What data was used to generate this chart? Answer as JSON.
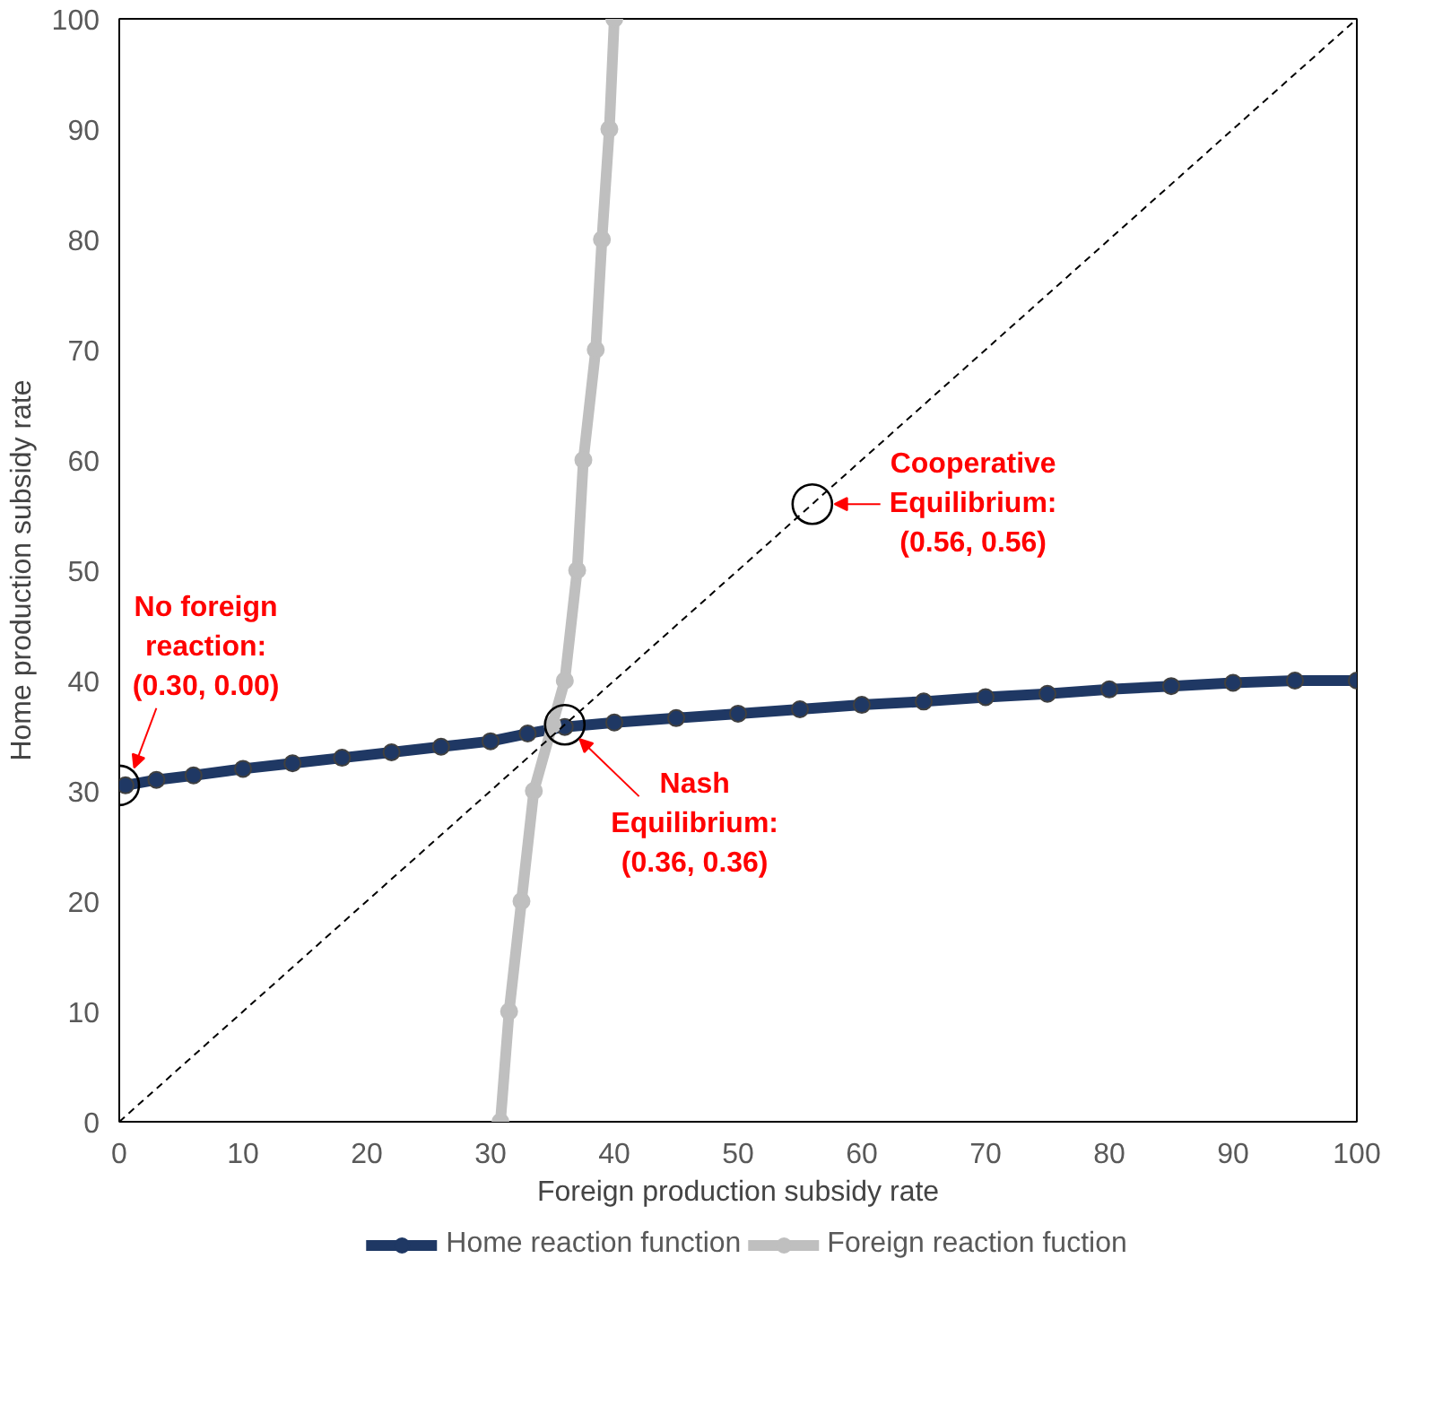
{
  "chart_data": {
    "type": "line",
    "xlabel": "Foreign production subsidy rate",
    "ylabel": "Home production subsidy rate",
    "xlim": [
      0,
      100
    ],
    "ylim": [
      0,
      100
    ],
    "xticks": [
      0,
      10,
      20,
      30,
      40,
      50,
      60,
      70,
      80,
      90,
      100
    ],
    "yticks": [
      0,
      10,
      20,
      30,
      40,
      50,
      60,
      70,
      80,
      90,
      100
    ],
    "grid": false,
    "legend": "bottom",
    "series": [
      {
        "name": "Home reaction function",
        "color": "#1f3864",
        "marker": "circle",
        "x": [
          0.5,
          3,
          6,
          10,
          14,
          18,
          22,
          26,
          30,
          33,
          36,
          40,
          45,
          50,
          55,
          60,
          65,
          70,
          75,
          80,
          85,
          90,
          95,
          100
        ],
        "values": [
          30.5,
          31,
          31.4,
          32,
          32.5,
          33,
          33.5,
          34,
          34.5,
          35.2,
          35.8,
          36.2,
          36.6,
          37,
          37.4,
          37.8,
          38.1,
          38.5,
          38.8,
          39.2,
          39.5,
          39.8,
          40,
          40
        ]
      },
      {
        "name": "Foreign reaction fuction",
        "color": "#bfbfbf",
        "marker": "circle",
        "x": [
          30.8,
          31.5,
          32.5,
          33.5,
          35,
          36,
          37,
          37.5,
          38.5,
          39,
          39.6,
          40
        ],
        "values": [
          0,
          10,
          20,
          30,
          36,
          40,
          50,
          60,
          70,
          80,
          90,
          100
        ]
      },
      {
        "color": "#000000",
        "line_style": "dashed",
        "x": [
          0,
          100
        ],
        "values": [
          0,
          100
        ]
      },
      {
        "type": "scatter",
        "color": "#000000",
        "x": [
          0,
          36,
          56
        ],
        "values": [
          30.5,
          36,
          56
        ]
      }
    ],
    "annotations": [
      {
        "text": "No foreign reaction:\n(0.30, 0.00)",
        "x": 0.5,
        "y": 30.5
      },
      {
        "text": "Nash Equilibrium:\n(0.36, 0.36)",
        "x": 36,
        "y": 36
      },
      {
        "text": "Cooperative Equilibrium:\n(0.56, 0.56)",
        "x": 56,
        "y": 56
      }
    ]
  }
}
